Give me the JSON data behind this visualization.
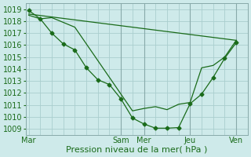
{
  "xlabel": "Pression niveau de la mer( hPa )",
  "ylim": [
    1008.5,
    1019.5
  ],
  "yticks": [
    1009,
    1010,
    1011,
    1012,
    1013,
    1014,
    1015,
    1016,
    1017,
    1018,
    1019
  ],
  "bg_color": "#ceeaea",
  "line_color": "#1a6b1a",
  "grid_color": "#aacece",
  "vline_color": "#88aaaa",
  "xtick_labels": [
    "Mar",
    "Sam",
    "Mer",
    "Jeu",
    "Ven"
  ],
  "xtick_positions": [
    0,
    16,
    20,
    28,
    36
  ],
  "xlim": [
    -0.5,
    38
  ],
  "num_x_gridlines": 38,
  "vlines_x": [
    16,
    20,
    28,
    36
  ],
  "line1_x": [
    0,
    2,
    4,
    6,
    8,
    10,
    12,
    14,
    16,
    18,
    20,
    22,
    24,
    26,
    28,
    30,
    32,
    34,
    36
  ],
  "line1_y": [
    1018.9,
    1018.2,
    1017.0,
    1016.1,
    1015.6,
    1014.1,
    1013.1,
    1012.7,
    1011.5,
    1009.9,
    1009.4,
    1009.05,
    1009.05,
    1009.1,
    1011.1,
    1011.9,
    1013.3,
    1014.9,
    1016.2
  ],
  "line2_x": [
    0,
    36
  ],
  "line2_y": [
    1018.6,
    1016.4
  ],
  "line3_x": [
    0,
    2,
    4,
    6,
    8,
    18,
    20,
    22,
    24,
    26,
    28,
    30,
    32,
    34,
    36
  ],
  "line3_y": [
    1018.5,
    1018.2,
    1018.3,
    1017.9,
    1017.5,
    1010.5,
    1010.7,
    1010.85,
    1010.6,
    1011.05,
    1011.2,
    1014.1,
    1014.3,
    1015.0,
    1016.4
  ],
  "marker": "D",
  "markersize": 2.5,
  "linewidth": 0.9,
  "fontsize_xlabel": 8,
  "fontsize_ticks": 7
}
